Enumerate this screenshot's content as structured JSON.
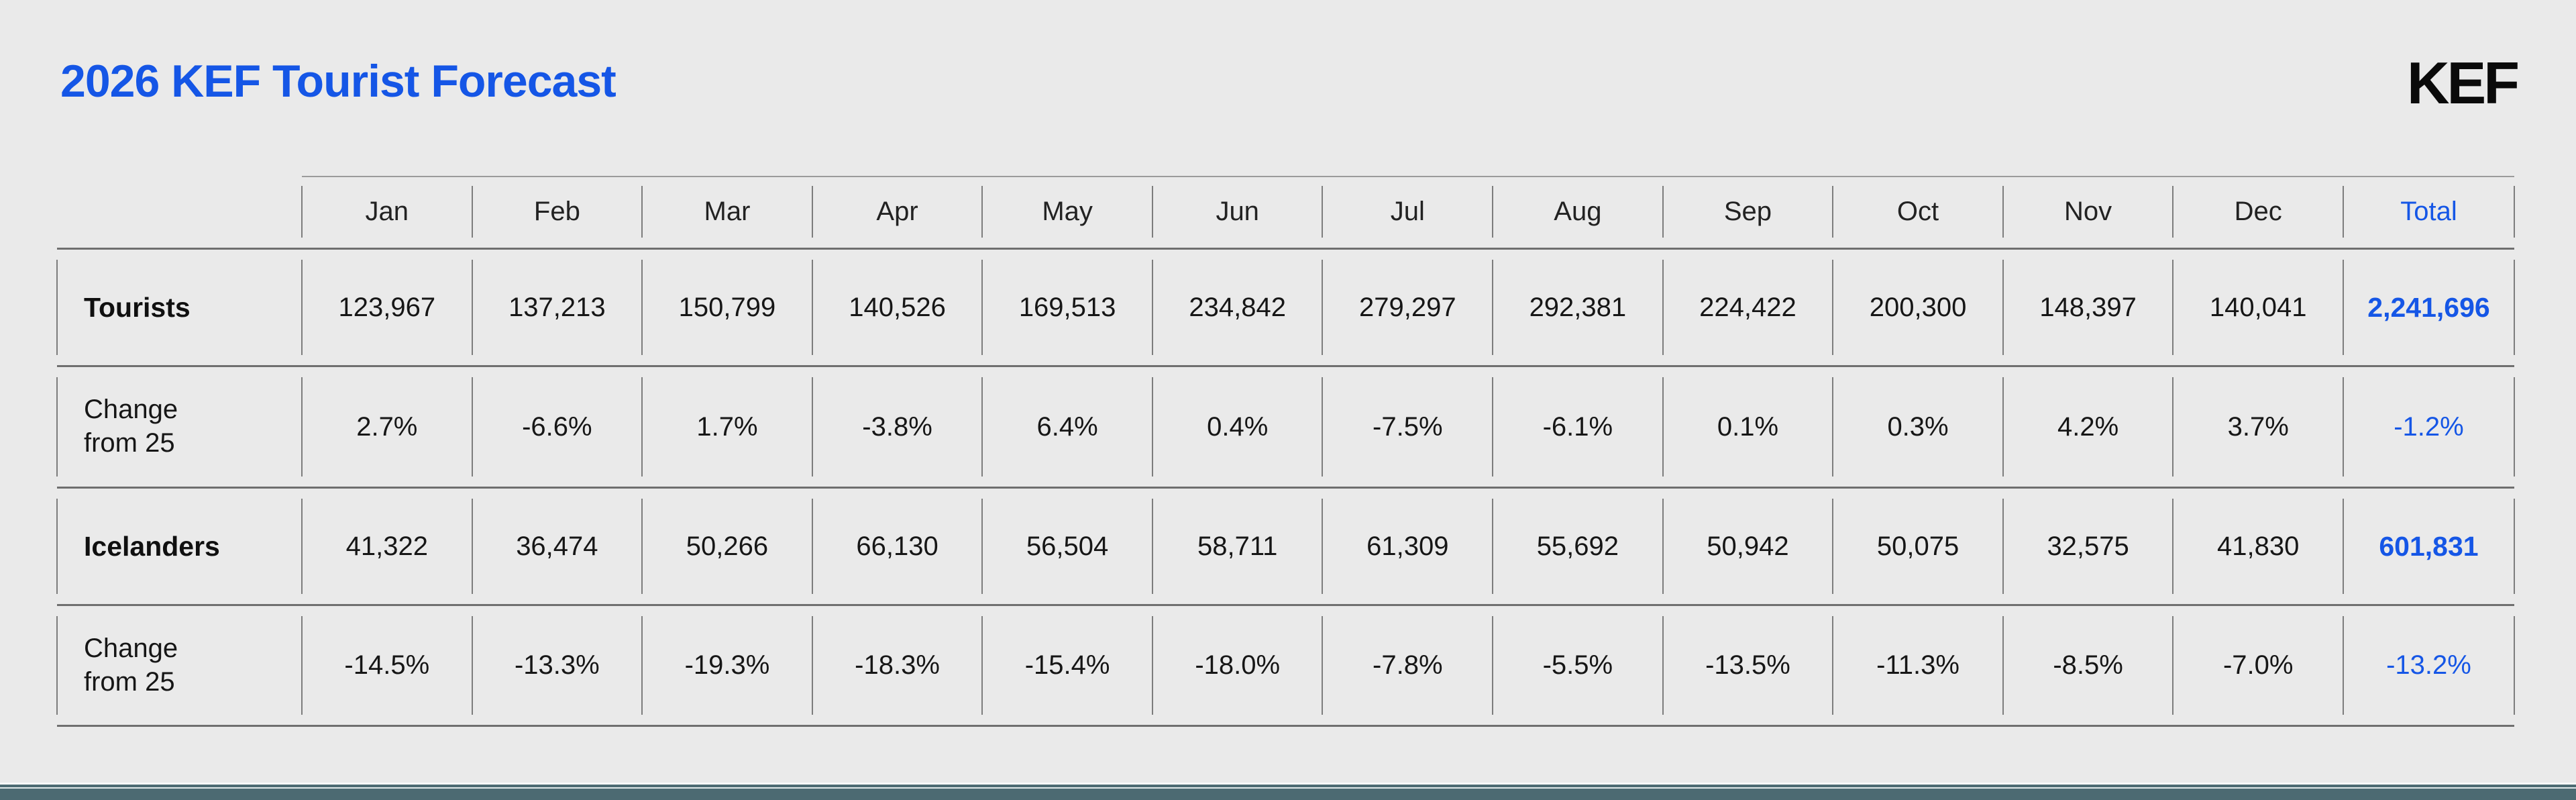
{
  "header": {
    "title": "2026 KEF Tourist Forecast",
    "logo": "KEF"
  },
  "colors": {
    "accent_blue": "#1556E6",
    "footer_teal": "#4C6A72",
    "background": "#EAEAEA",
    "rule_gray": "#6F6F6F"
  },
  "table": {
    "column_headers": [
      "Jan",
      "Feb",
      "Mar",
      "Apr",
      "May",
      "Jun",
      "Jul",
      "Aug",
      "Sep",
      "Oct",
      "Nov",
      "Dec",
      "Total"
    ],
    "rows": [
      {
        "label": "Tourists",
        "emphasis": true,
        "cells": [
          "123,967",
          "137,213",
          "150,799",
          "140,526",
          "169,513",
          "234,842",
          "279,297",
          "292,381",
          "224,422",
          "200,300",
          "148,397",
          "140,041"
        ],
        "total": "2,241,696",
        "total_bold": true
      },
      {
        "label": "Change from 25",
        "emphasis": false,
        "cells": [
          "2.7%",
          "-6.6%",
          "1.7%",
          "-3.8%",
          "6.4%",
          "0.4%",
          "-7.5%",
          "-6.1%",
          "0.1%",
          "0.3%",
          "4.2%",
          "3.7%"
        ],
        "total": "-1.2%",
        "total_bold": false
      },
      {
        "label": "Icelanders",
        "emphasis": true,
        "cells": [
          "41,322",
          "36,474",
          "50,266",
          "66,130",
          "56,504",
          "58,711",
          "61,309",
          "55,692",
          "50,942",
          "50,075",
          "32,575",
          "41,830"
        ],
        "total": "601,831",
        "total_bold": true
      },
      {
        "label": "Change from 25",
        "emphasis": false,
        "cells": [
          "-14.5%",
          "-13.3%",
          "-19.3%",
          "-18.3%",
          "-15.4%",
          "-18.0%",
          "-7.8%",
          "-5.5%",
          "-13.5%",
          "-11.3%",
          "-8.5%",
          "-7.0%"
        ],
        "total": "-13.2%",
        "total_bold": false
      }
    ]
  },
  "chart_data": {
    "type": "table",
    "title": "2026 KEF Tourist Forecast",
    "categories": [
      "Jan",
      "Feb",
      "Mar",
      "Apr",
      "May",
      "Jun",
      "Jul",
      "Aug",
      "Sep",
      "Oct",
      "Nov",
      "Dec"
    ],
    "series": [
      {
        "name": "Tourists",
        "values": [
          123967,
          137213,
          150799,
          140526,
          169513,
          234842,
          279297,
          292381,
          224422,
          200300,
          148397,
          140041
        ],
        "total": 2241696
      },
      {
        "name": "Tourists change from 25 (%)",
        "values": [
          2.7,
          -6.6,
          1.7,
          -3.8,
          6.4,
          0.4,
          -7.5,
          -6.1,
          0.1,
          0.3,
          4.2,
          3.7
        ],
        "total": -1.2
      },
      {
        "name": "Icelanders",
        "values": [
          41322,
          36474,
          50266,
          66130,
          56504,
          58711,
          61309,
          55692,
          50942,
          50075,
          32575,
          41830
        ],
        "total": 601831
      },
      {
        "name": "Icelanders change from 25 (%)",
        "values": [
          -14.5,
          -13.3,
          -19.3,
          -18.3,
          -15.4,
          -18.0,
          -7.8,
          -5.5,
          -13.5,
          -11.3,
          -8.5,
          -7.0
        ],
        "total": -13.2
      }
    ]
  }
}
